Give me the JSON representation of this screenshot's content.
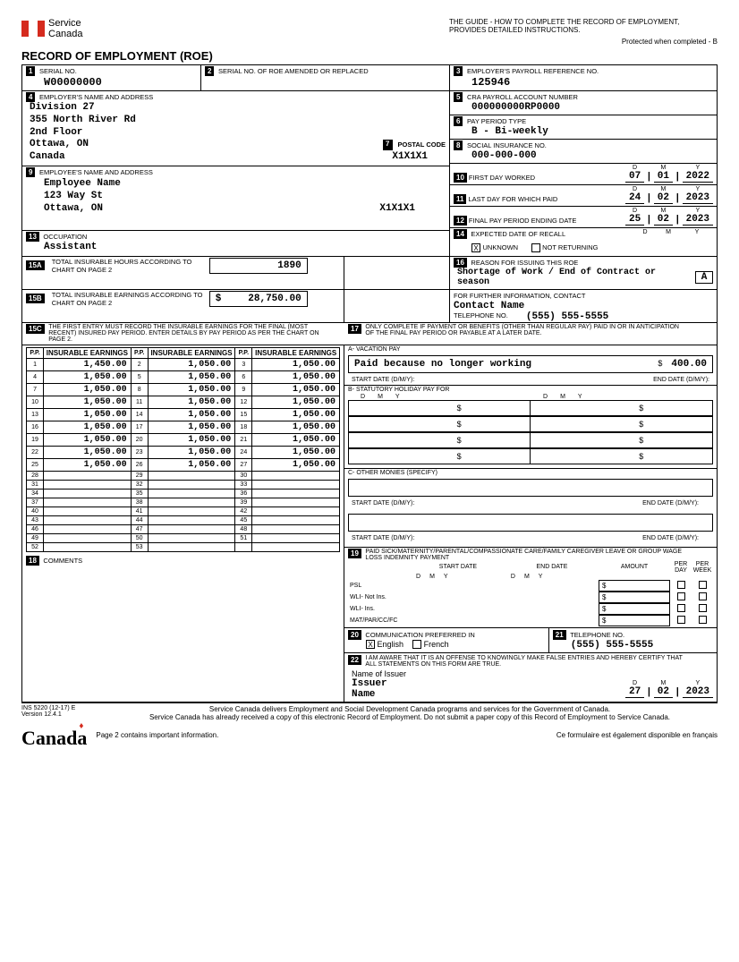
{
  "header": {
    "brand1": "Service",
    "brand2": "Canada",
    "guide": "THE GUIDE - HOW TO COMPLETE THE RECORD OF EMPLOYMENT, PROVIDES DETAILED INSTRUCTIONS.",
    "protected": "Protected when completed - B",
    "title": "RECORD OF EMPLOYMENT (ROE)"
  },
  "box1": {
    "num": "1",
    "label": "SERIAL NO.",
    "value": "W00000000"
  },
  "box2": {
    "num": "2",
    "label": "SERIAL NO. OF ROE AMENDED OR REPLACED",
    "value": ""
  },
  "box3": {
    "num": "3",
    "label": "EMPLOYER'S PAYROLL REFERENCE NO.",
    "value": "125946"
  },
  "box4": {
    "num": "4",
    "label": "EMPLOYER'S NAME AND ADDRESS",
    "line1": "Division 27",
    "line2": "355 North River Rd",
    "line3": "2nd Floor",
    "line4": "Ottawa, ON",
    "line5": "Canada"
  },
  "box5": {
    "num": "5",
    "label": "CRA PAYROLL ACCOUNT NUMBER",
    "value": "000000000RP0000"
  },
  "box6": {
    "num": "6",
    "label": "PAY PERIOD TYPE",
    "value": "B - Bi-weekly"
  },
  "box7": {
    "num": "7",
    "label": "POSTAL CODE",
    "value": "X1X1X1"
  },
  "box8": {
    "num": "8",
    "label": "SOCIAL INSURANCE NO.",
    "value": "000-000-000"
  },
  "box9": {
    "num": "9",
    "label": "EMPLOYEE'S NAME AND ADDRESS",
    "line1": "Employee Name",
    "line2": "123 Way St",
    "line3": "Ottawa, ON",
    "postal": "X1X1X1"
  },
  "box10": {
    "num": "10",
    "label": "FIRST DAY WORKED",
    "d": "07",
    "m": "01",
    "y": "2022"
  },
  "box11": {
    "num": "11",
    "label": "LAST DAY FOR WHICH PAID",
    "d": "24",
    "m": "02",
    "y": "2023"
  },
  "box12": {
    "num": "12",
    "label": "FINAL PAY PERIOD ENDING DATE",
    "d": "25",
    "m": "02",
    "y": "2023"
  },
  "box13": {
    "num": "13",
    "label": "OCCUPATION",
    "value": "Assistant"
  },
  "box14": {
    "num": "14",
    "label": "EXPECTED DATE OF RECALL",
    "unknown": "UNKNOWN",
    "notret": "NOT RETURNING",
    "checked": "X"
  },
  "box15a": {
    "num": "15A",
    "label": "TOTAL INSURABLE HOURS ACCORDING TO CHART ON PAGE 2",
    "value": "1890"
  },
  "box15b": {
    "num": "15B",
    "label": "TOTAL INSURABLE EARNINGS ACCORDING TO CHART ON PAGE 2",
    "value": "28,750.00"
  },
  "box15c": {
    "num": "15C",
    "label": "THE FIRST ENTRY MUST RECORD THE INSURABLE EARNINGS FOR THE FINAL (MOST RECENT) INSURED PAY PERIOD. ENTER DETAILS BY PAY PERIOD AS PER THE CHART ON PAGE 2.",
    "header_pp": "P.P.",
    "header_earn": "INSURABLE EARNINGS",
    "rows": [
      [
        "1",
        "1,450.00",
        "2",
        "1,050.00",
        "3",
        "1,050.00"
      ],
      [
        "4",
        "1,050.00",
        "5",
        "1,050.00",
        "6",
        "1,050.00"
      ],
      [
        "7",
        "1,050.00",
        "8",
        "1,050.00",
        "9",
        "1,050.00"
      ],
      [
        "10",
        "1,050.00",
        "11",
        "1,050.00",
        "12",
        "1,050.00"
      ],
      [
        "13",
        "1,050.00",
        "14",
        "1,050.00",
        "15",
        "1,050.00"
      ],
      [
        "16",
        "1,050.00",
        "17",
        "1,050.00",
        "18",
        "1,050.00"
      ],
      [
        "19",
        "1,050.00",
        "20",
        "1,050.00",
        "21",
        "1,050.00"
      ],
      [
        "22",
        "1,050.00",
        "23",
        "1,050.00",
        "24",
        "1,050.00"
      ],
      [
        "25",
        "1,050.00",
        "26",
        "1,050.00",
        "27",
        "1,050.00"
      ],
      [
        "28",
        "",
        "29",
        "",
        "30",
        ""
      ],
      [
        "31",
        "",
        "32",
        "",
        "33",
        ""
      ],
      [
        "34",
        "",
        "35",
        "",
        "36",
        ""
      ],
      [
        "37",
        "",
        "38",
        "",
        "39",
        ""
      ],
      [
        "40",
        "",
        "41",
        "",
        "42",
        ""
      ],
      [
        "43",
        "",
        "44",
        "",
        "45",
        ""
      ],
      [
        "46",
        "",
        "47",
        "",
        "48",
        ""
      ],
      [
        "49",
        "",
        "50",
        "",
        "51",
        ""
      ],
      [
        "52",
        "",
        "53",
        "",
        "",
        ""
      ]
    ]
  },
  "box16": {
    "num": "16",
    "label": "REASON FOR ISSUING THIS ROE",
    "value": "Shortage of Work / End of Contract or season",
    "code": "A",
    "contact_label": "FOR FURTHER INFORMATION, CONTACT",
    "contact": "Contact Name",
    "tel_label": "TELEPHONE NO.",
    "tel": "(555) 555-5555"
  },
  "box17": {
    "num": "17",
    "label": "ONLY COMPLETE IF PAYMENT OR BENEFITS (OTHER THAN REGULAR PAY) PAID IN OR IN ANTICIPATION OF THE FINAL PAY PERIOD OR PAYABLE AT A LATER DATE.",
    "a_label": "A- VACATION PAY",
    "a_text": "Paid because no longer working",
    "a_amount": "400.00",
    "start_label": "START DATE (D/M/Y):",
    "end_label": "END DATE (D/M/Y):",
    "b_label": "B- STATUTORY HOLIDAY PAY FOR",
    "c_label": "C- OTHER MONIES (SPECIFY)"
  },
  "box18": {
    "num": "18",
    "label": "COMMENTS"
  },
  "box19": {
    "num": "19",
    "label": "PAID SICK/MATERNITY/PARENTAL/COMPASSIONATE CARE/FAMILY CAREGIVER LEAVE OR GROUP WAGE LOSS INDEMNITY PAYMENT",
    "start": "START DATE",
    "end": "END DATE",
    "amount": "AMOUNT",
    "perday": "PER DAY",
    "perweek": "PER WEEK",
    "rows": [
      "PSL",
      "WLI- Not Ins.",
      "WLI- Ins.",
      "MAT/PAR/CC/FC"
    ]
  },
  "box20": {
    "num": "20",
    "label": "COMMUNICATION PREFERRED IN",
    "english": "English",
    "french": "French",
    "checked": "X"
  },
  "box21": {
    "num": "21",
    "label": "TELEPHONE NO.",
    "value": "(555) 555-5555"
  },
  "box22": {
    "num": "22",
    "label": "I AM AWARE THAT IT IS AN OFFENSE TO KNOWINGLY MAKE FALSE ENTRIES AND HEREBY CERTIFY THAT ALL STATEMENTS ON THIS FORM ARE TRUE.",
    "issuer_label": "Name of Issuer",
    "issuer": "Issuer",
    "name_label": "Name",
    "d": "27",
    "m": "02",
    "y": "2023"
  },
  "footer": {
    "form_no": "INS 5220 (12-17) E",
    "version": "Version  12.4.1",
    "line1": "Service Canada delivers Employment and Social Development Canada programs and services for the Government of Canada.",
    "line2": "Service Canada has already received a copy of this electronic Record of Employment. Do not submit a paper copy of this Record of Employment to Service Canada.",
    "page2": "Page 2 contains important information.",
    "french": "Ce formulaire est également disponible en français",
    "wordmark": "Canada"
  },
  "labels": {
    "D": "D",
    "M": "M",
    "Y": "Y",
    "dollar": "$"
  }
}
